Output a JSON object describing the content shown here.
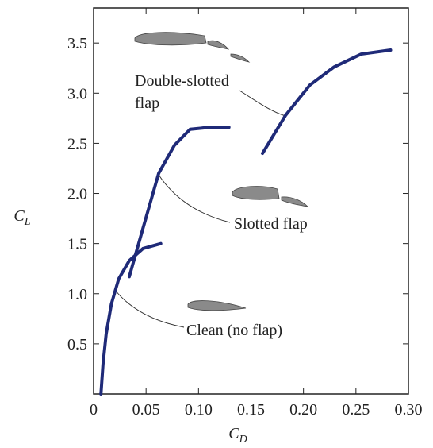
{
  "chart_data": {
    "type": "line",
    "x_label": "C",
    "x_label_subscript": "D",
    "y_label": "C",
    "y_label_subscript": "L",
    "xlim": [
      0,
      0.3
    ],
    "ylim": [
      0,
      3.85
    ],
    "xticks": [
      0,
      0.05,
      {
        "value": 0.1,
        "label": "0.10"
      },
      0.15,
      {
        "value": 0.2,
        "label": "0.20"
      },
      0.25,
      {
        "value": 0.3,
        "label": "0.30"
      }
    ],
    "yticks": [
      0.5,
      {
        "value": 1,
        "label": "1.0"
      },
      1.5,
      {
        "value": 2,
        "label": "2.0"
      },
      2.5,
      {
        "value": 3,
        "label": "3.0"
      },
      3.5
    ],
    "series": [
      {
        "name": "Clean (no flap)",
        "color": "#1f2a78",
        "x": [
          0.007,
          0.009,
          0.012,
          0.017,
          0.024,
          0.034,
          0.047,
          0.064
        ],
        "values": [
          0.0,
          0.3,
          0.6,
          0.9,
          1.15,
          1.33,
          1.45,
          1.5
        ]
      },
      {
        "name": "Slotted flap",
        "color": "#1f2a78",
        "x": [
          0.034,
          0.047,
          0.062,
          0.077,
          0.092,
          0.111,
          0.129
        ],
        "values": [
          1.17,
          1.65,
          2.2,
          2.48,
          2.64,
          2.66,
          2.66
        ]
      },
      {
        "name": "Double-slotted flap",
        "color": "#1f2a78",
        "x": [
          0.161,
          0.183,
          0.206,
          0.229,
          0.255,
          0.283
        ],
        "values": [
          2.4,
          2.78,
          3.08,
          3.26,
          3.39,
          3.43
        ]
      }
    ]
  }
}
